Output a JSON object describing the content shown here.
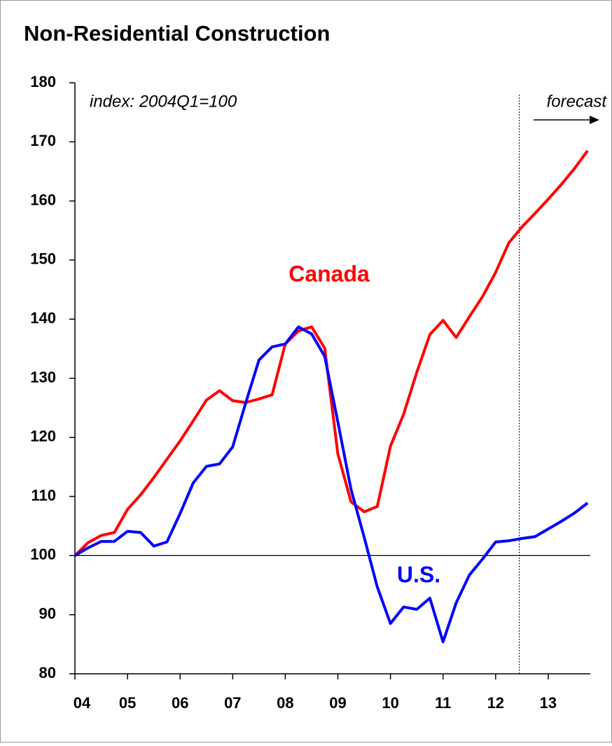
{
  "chart_data": {
    "type": "line",
    "title": "Non-Residential Construction",
    "subtitle": "index: 2004Q1=100",
    "annotation": "forecast",
    "forecast_start": 12.45,
    "reference_line": 100,
    "x": [
      4,
      4.25,
      4.5,
      4.75,
      5,
      5.25,
      5.5,
      5.75,
      6,
      6.25,
      6.5,
      6.75,
      7,
      7.25,
      7.5,
      7.75,
      8,
      8.25,
      8.5,
      8.75,
      9,
      9.25,
      9.5,
      9.75,
      10,
      10.25,
      10.5,
      10.75,
      11,
      11.25,
      11.5,
      11.75,
      12,
      12.25,
      12.5,
      12.75,
      13,
      13.25,
      13.5,
      13.75
    ],
    "series": [
      {
        "name": "Canada",
        "color": "#ff0000",
        "values": [
          100,
          102.2,
          103.4,
          103.9,
          107.8,
          110.3,
          113.2,
          116.3,
          119.4,
          122.8,
          126.3,
          127.9,
          126.2,
          125.9,
          126.5,
          127.2,
          135.8,
          138.0,
          138.7,
          135.1,
          117.2,
          109.1,
          107.4,
          108.3,
          118.5,
          123.9,
          131.0,
          137.4,
          139.8,
          136.9,
          140.4,
          143.8,
          147.9,
          152.9,
          155.6,
          157.9,
          160.3,
          162.8,
          165.5,
          168.5
        ]
      },
      {
        "name": "U.S.",
        "color": "#0000ff",
        "values": [
          100,
          101.3,
          102.4,
          102.4,
          104.1,
          103.9,
          101.6,
          102.3,
          107.1,
          112.3,
          115.1,
          115.5,
          118.4,
          125.9,
          133.1,
          135.3,
          135.8,
          138.7,
          137.5,
          133.7,
          122.6,
          111.2,
          103.1,
          94.7,
          88.5,
          91.3,
          90.9,
          92.8,
          85.4,
          92.0,
          96.7,
          99.4,
          102.3,
          102.5,
          102.9,
          103.2,
          104.5,
          105.8,
          107.2,
          108.9
        ]
      }
    ],
    "xlim": [
      4,
      13.8
    ],
    "xticks": [
      {
        "value": 4,
        "label": "04"
      },
      {
        "value": 5,
        "label": "05"
      },
      {
        "value": 6,
        "label": "06"
      },
      {
        "value": 7,
        "label": "07"
      },
      {
        "value": 8,
        "label": "08"
      },
      {
        "value": 9,
        "label": "09"
      },
      {
        "value": 10,
        "label": "10"
      },
      {
        "value": 11,
        "label": "11"
      },
      {
        "value": 12,
        "label": "12"
      },
      {
        "value": 13,
        "label": "13"
      }
    ],
    "ylim": [
      80,
      180
    ],
    "yticks": [
      80,
      90,
      100,
      110,
      120,
      130,
      140,
      150,
      160,
      170,
      180
    ]
  }
}
